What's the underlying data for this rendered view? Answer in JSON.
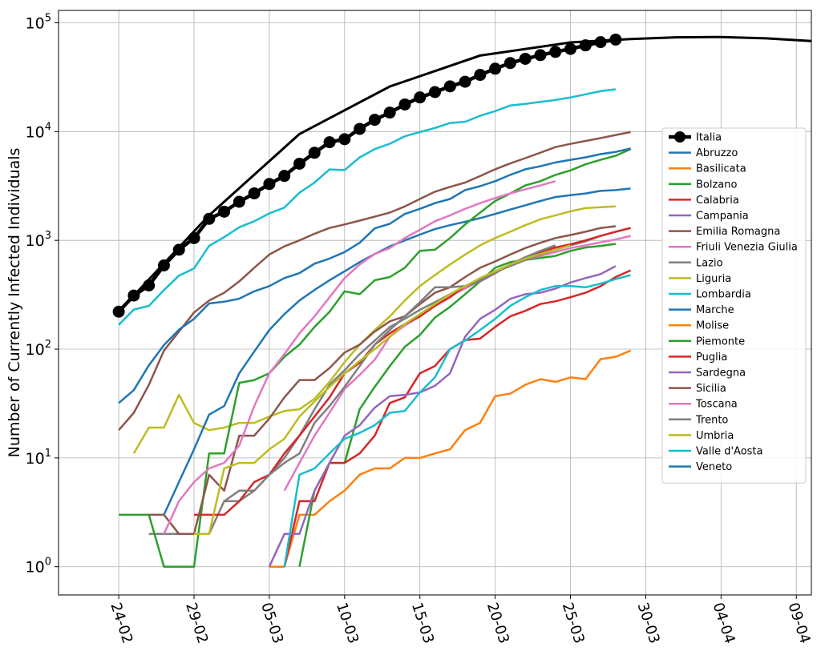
{
  "chart_data": {
    "type": "line",
    "title": "",
    "xlabel": "",
    "ylabel": "Number of Currently Infected Individuals",
    "y_scale": "log",
    "ylim": [
      0.55,
      130000
    ],
    "xlim": [
      "2020-02-20",
      "2020-04-10"
    ],
    "grid": true,
    "legend_position": "right",
    "x_ticks": [
      {
        "date": "2020-02-24",
        "label": "24-02"
      },
      {
        "date": "2020-02-29",
        "label": "29-02"
      },
      {
        "date": "2020-03-05",
        "label": "05-03"
      },
      {
        "date": "2020-03-10",
        "label": "10-03"
      },
      {
        "date": "2020-03-15",
        "label": "15-03"
      },
      {
        "date": "2020-03-20",
        "label": "20-03"
      },
      {
        "date": "2020-03-25",
        "label": "25-03"
      },
      {
        "date": "2020-03-30",
        "label": "30-03"
      },
      {
        "date": "2020-04-04",
        "label": "04-04"
      },
      {
        "date": "2020-04-09",
        "label": "09-04"
      }
    ],
    "y_ticks": [
      {
        "value": 1,
        "base": "10",
        "exp": "0"
      },
      {
        "value": 10,
        "base": "10",
        "exp": "1"
      },
      {
        "value": 100,
        "base": "10",
        "exp": "2"
      },
      {
        "value": 1000,
        "base": "10",
        "exp": "3"
      },
      {
        "value": 10000,
        "base": "10",
        "exp": "4"
      },
      {
        "value": 100000,
        "base": "10",
        "exp": "5"
      }
    ],
    "start_date": "2020-02-24",
    "series": [
      {
        "name": "Italia",
        "color": "#000000",
        "emphasis": true,
        "values": [
          221,
          311,
          385,
          588,
          821,
          1049,
          1577,
          1835,
          2263,
          2706,
          3296,
          3916,
          5061,
          6387,
          7985,
          8514,
          10590,
          12839,
          14955,
          17750,
          20603,
          23073,
          26062,
          28710,
          33190,
          37860,
          42681,
          46638,
          50418,
          54030,
          57521,
          62013,
          66414,
          70065
        ],
        "projection": [
          [
            0,
            221
          ],
          [
            6,
            1700
          ],
          [
            12,
            9500
          ],
          [
            18,
            26000
          ],
          [
            24,
            50000
          ],
          [
            30,
            66000
          ],
          [
            34,
            71000
          ],
          [
            37,
            73500
          ],
          [
            40,
            74000
          ],
          [
            43,
            72000
          ],
          [
            46,
            68000
          ],
          [
            47.5,
            66000
          ]
        ]
      },
      {
        "name": "Abruzzo",
        "color": "#1f77b4",
        "values": [
          null,
          null,
          null,
          null,
          null,
          null,
          null,
          null,
          null,
          null,
          null,
          null,
          null,
          null,
          null,
          null,
          null,
          null,
          null,
          null,
          null,
          null,
          null,
          null,
          null,
          null,
          null,
          null,
          null,
          null,
          null,
          null,
          null,
          null
        ]
      },
      {
        "name": "Basilicata",
        "color": "#ff7f0e",
        "values": [
          null,
          null,
          null,
          null,
          null,
          null,
          null,
          null,
          null,
          null,
          1,
          1,
          3,
          3,
          4,
          5,
          7,
          8,
          8,
          10,
          10,
          11,
          12,
          18,
          21,
          37,
          39,
          47,
          53,
          50,
          55,
          53,
          81,
          85,
          97
        ]
      },
      {
        "name": "Bolzano",
        "color": "#2ca02c",
        "values": [
          null,
          null,
          null,
          null,
          null,
          null,
          null,
          null,
          null,
          null,
          null,
          null,
          1,
          5,
          9,
          9,
          28,
          45,
          70,
          105,
          135,
          195,
          245,
          320,
          420,
          560,
          630,
          660,
          690,
          720,
          800,
          860,
          890,
          930
        ]
      },
      {
        "name": "Calabria",
        "color": "#d62728",
        "values": [
          null,
          null,
          null,
          null,
          null,
          null,
          null,
          null,
          null,
          null,
          null,
          1,
          4,
          4,
          9,
          9,
          11,
          16,
          32,
          36,
          60,
          70,
          100,
          121,
          125,
          160,
          200,
          225,
          260,
          275,
          300,
          330,
          380,
          460,
          530
        ]
      },
      {
        "name": "Campania",
        "color": "#9467bd",
        "values": [
          null,
          null,
          null,
          null,
          null,
          null,
          null,
          null,
          null,
          null,
          1,
          2,
          2,
          5,
          9,
          16,
          20,
          29,
          37,
          38,
          40,
          46,
          60,
          130,
          190,
          230,
          290,
          320,
          330,
          360,
          410,
          450,
          490,
          580
        ]
      },
      {
        "name": "Emilia Romagna",
        "color": "#8c564b",
        "values": [
          18,
          26,
          47,
          97,
          145,
          217,
          280,
          330,
          420,
          560,
          740,
          880,
          1000,
          1150,
          1300,
          1400,
          1520,
          1650,
          1800,
          2050,
          2400,
          2800,
          3100,
          3400,
          3900,
          4500,
          5100,
          5700,
          6400,
          7200,
          7700,
          8200,
          8700,
          9300,
          9900
        ]
      },
      {
        "name": "Friuli Venezia Giulia",
        "color": "#e377c2",
        "values": [
          null,
          null,
          null,
          null,
          null,
          null,
          null,
          null,
          null,
          null,
          null,
          5,
          9,
          16,
          26,
          43,
          58,
          80,
          130,
          165,
          200,
          250,
          310,
          360,
          430,
          520,
          600,
          660,
          720,
          780,
          850,
          900,
          960,
          1020,
          1100
        ]
      },
      {
        "name": "Lazio",
        "color": "#7f7f7f",
        "values": [
          null,
          null,
          2,
          2,
          2,
          2,
          2,
          4,
          4,
          5,
          7,
          10,
          16,
          28,
          47,
          64,
          90,
          120,
          160,
          190,
          230,
          270,
          320,
          380,
          440,
          510,
          580,
          660,
          740,
          820,
          900,
          980,
          1100,
          1200,
          1300
        ]
      },
      {
        "name": "Liguria",
        "color": "#bcbd22",
        "values": [
          null,
          11,
          19,
          19,
          38,
          21,
          18,
          19,
          21,
          21,
          24,
          27,
          28,
          35,
          50,
          76,
          110,
          150,
          200,
          280,
          380,
          480,
          600,
          740,
          900,
          1050,
          1200,
          1380,
          1560,
          1700,
          1850,
          1980,
          2020,
          2050
        ]
      },
      {
        "name": "Lombardia",
        "color": "#17becf",
        "values": [
          167,
          231,
          250,
          349,
          474,
          552,
          890,
          1070,
          1320,
          1500,
          1770,
          2000,
          2740,
          3400,
          4490,
          4430,
          5790,
          6900,
          7730,
          9060,
          9900,
          10800,
          11990,
          12300,
          13960,
          15420,
          17370,
          18000,
          18730,
          19500,
          20600,
          22000,
          23500,
          24500
        ]
      },
      {
        "name": "Marche",
        "color": "#1f77b4",
        "values": [
          null,
          null,
          null,
          3,
          6,
          12,
          25,
          30,
          60,
          95,
          150,
          210,
          280,
          350,
          430,
          520,
          630,
          750,
          880,
          1000,
          1130,
          1270,
          1380,
          1480,
          1600,
          1750,
          1920,
          2100,
          2300,
          2500,
          2600,
          2700,
          2850,
          2900,
          3000
        ]
      },
      {
        "name": "Molise",
        "color": "#ff7f0e",
        "values": [
          null,
          null,
          null,
          null,
          null,
          null,
          null,
          null,
          null,
          null,
          null,
          null,
          null,
          null,
          null,
          null,
          null,
          null,
          null,
          null,
          null,
          null,
          null,
          null,
          null,
          null,
          null,
          null,
          null,
          null,
          null,
          null,
          null,
          null
        ]
      },
      {
        "name": "Piemonte",
        "color": "#2ca02c",
        "values": [
          3,
          3,
          3,
          1,
          1,
          1,
          11,
          11,
          49,
          52,
          60,
          85,
          110,
          160,
          220,
          340,
          320,
          430,
          460,
          560,
          800,
          820,
          1050,
          1400,
          1800,
          2300,
          2700,
          3200,
          3500,
          4000,
          4400,
          5000,
          5500,
          6000,
          6900
        ]
      },
      {
        "name": "Puglia",
        "color": "#d62728",
        "values": [
          null,
          null,
          null,
          null,
          null,
          3,
          3,
          3,
          4,
          6,
          7,
          11,
          16,
          24,
          36,
          60,
          75,
          110,
          140,
          170,
          200,
          250,
          300,
          380,
          420,
          500,
          600,
          700,
          780,
          860,
          920,
          1000,
          1100,
          1200,
          1300
        ]
      },
      {
        "name": "Sardegna",
        "color": "#9467bd",
        "values": [
          null,
          null,
          null,
          null,
          null,
          null,
          null,
          null,
          null,
          null,
          null,
          null,
          null,
          null,
          null,
          null,
          null,
          null,
          null,
          null,
          null,
          null,
          null,
          null,
          null,
          null,
          null,
          null,
          null,
          null,
          null,
          null,
          null,
          null
        ]
      },
      {
        "name": "Sicilia",
        "color": "#8c564b",
        "values": [
          null,
          null,
          3,
          3,
          2,
          2,
          7,
          5,
          16,
          16,
          23,
          36,
          52,
          52,
          67,
          93,
          110,
          145,
          180,
          200,
          260,
          330,
          370,
          460,
          560,
          640,
          740,
          850,
          950,
          1050,
          1120,
          1200,
          1300,
          1350
        ]
      },
      {
        "name": "Toscana",
        "color": "#e377c2",
        "values": [
          null,
          null,
          null,
          2,
          4,
          6,
          8,
          9,
          13,
          30,
          60,
          90,
          140,
          200,
          300,
          450,
          600,
          750,
          850,
          1050,
          1250,
          1500,
          1700,
          1950,
          2200,
          2450,
          2700,
          2950,
          3200,
          3500
        ]
      },
      {
        "name": "Trento",
        "color": "#7f7f7f",
        "values": [
          null,
          null,
          null,
          null,
          null,
          null,
          null,
          4,
          5,
          5,
          7,
          9,
          11,
          21,
          30,
          45,
          70,
          110,
          150,
          200,
          270,
          370,
          370,
          380,
          420,
          500,
          600,
          700,
          800,
          900
        ]
      },
      {
        "name": "Umbria",
        "color": "#bcbd22",
        "values": [
          null,
          null,
          null,
          null,
          null,
          2,
          2,
          8,
          9,
          9,
          12,
          15,
          24,
          33,
          45,
          60,
          78,
          100,
          130,
          170,
          210,
          260,
          320,
          380,
          450,
          520,
          600,
          680,
          750,
          820,
          900
        ]
      },
      {
        "name": "Valle d'Aosta",
        "color": "#17becf",
        "values": [
          null,
          null,
          null,
          null,
          null,
          null,
          null,
          null,
          null,
          null,
          null,
          1,
          7,
          8,
          11,
          15,
          17,
          20,
          26,
          27,
          40,
          55,
          100,
          120,
          150,
          190,
          250,
          300,
          350,
          380,
          380,
          370,
          400,
          440,
          480
        ]
      },
      {
        "name": "Veneto",
        "color": "#1f77b4",
        "values": [
          32,
          42,
          71,
          109,
          151,
          190,
          263,
          273,
          291,
          340,
          380,
          450,
          500,
          610,
          680,
          780,
          950,
          1290,
          1420,
          1750,
          1950,
          2200,
          2400,
          2900,
          3150,
          3500,
          4000,
          4500,
          4800,
          5200,
          5500,
          5800,
          6200,
          6500,
          7000
        ]
      }
    ]
  }
}
